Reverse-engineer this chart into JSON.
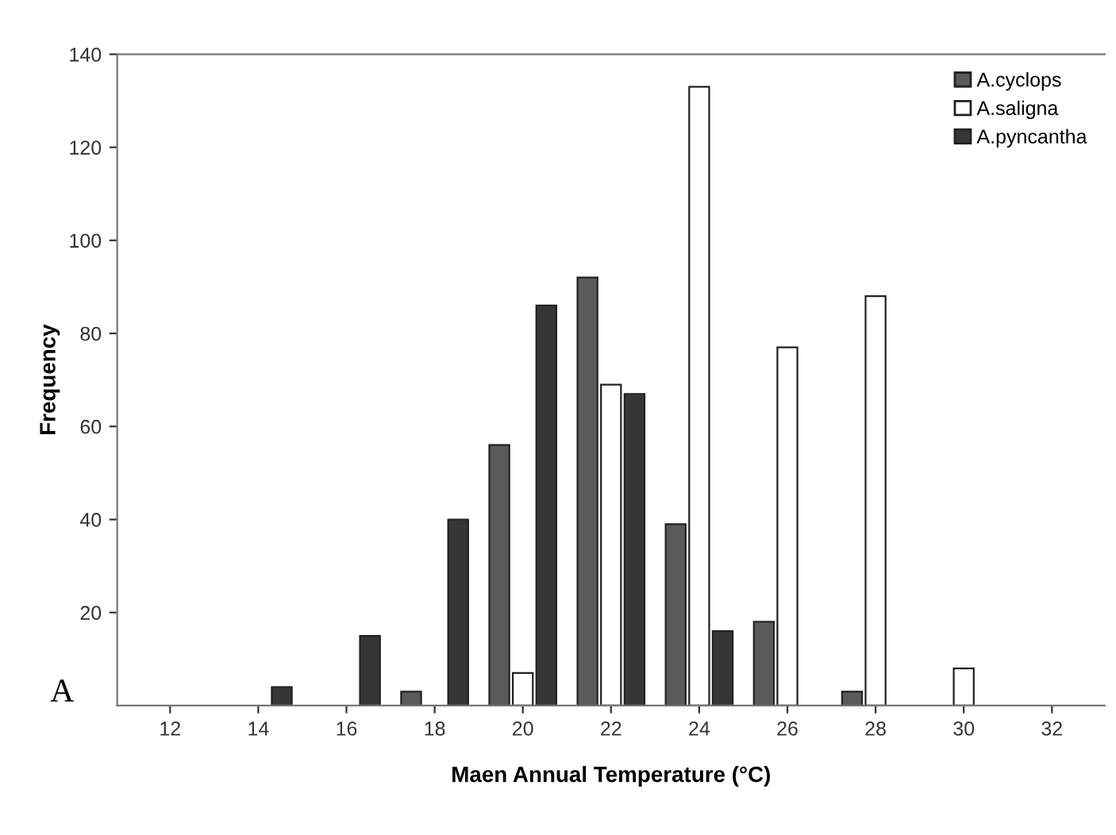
{
  "chart_data": {
    "type": "bar",
    "xlabel": "Maen Annual Temperature (°C)",
    "ylabel": "Frequency",
    "categories": [
      "12",
      "14",
      "16",
      "18",
      "20",
      "22",
      "24",
      "26",
      "28",
      "30",
      "32"
    ],
    "series": [
      {
        "name": "A.cyclops",
        "color": "#5a5a5a",
        "values": [
          null,
          null,
          null,
          3,
          56,
          92,
          39,
          18,
          3,
          null,
          null
        ]
      },
      {
        "name": "A.saligna",
        "color": "#ffffff",
        "values": [
          null,
          null,
          null,
          null,
          7,
          69,
          133,
          77,
          88,
          8,
          null
        ]
      },
      {
        "name": "A.pyncantha",
        "color": "#363636",
        "values": [
          null,
          4,
          15,
          40,
          86,
          67,
          16,
          null,
          null,
          null,
          null
        ]
      }
    ],
    "ylim": [
      0,
      140
    ],
    "yticks": [
      20,
      40,
      60,
      80,
      100,
      120,
      140
    ],
    "legend": "top right",
    "grid": false,
    "annotations": [
      "A"
    ]
  }
}
